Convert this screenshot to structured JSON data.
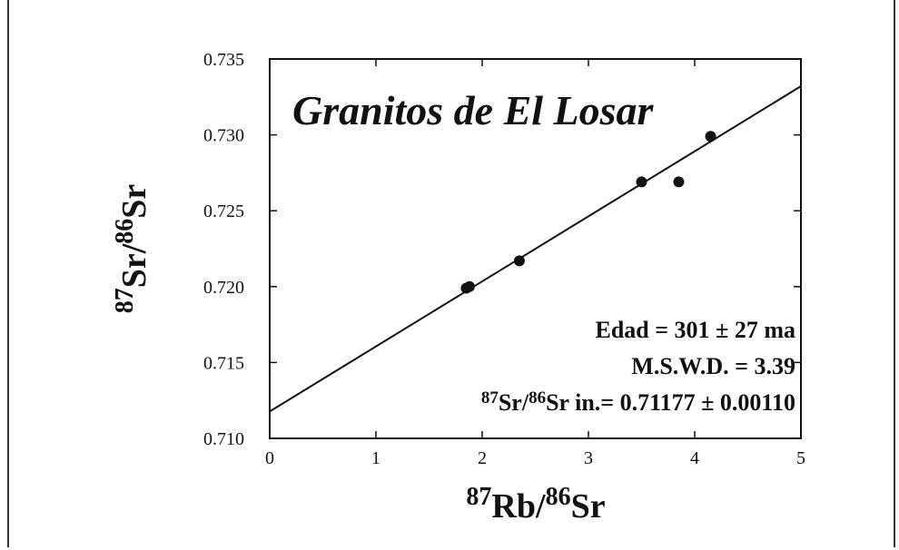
{
  "chart_data": {
    "type": "scatter",
    "title": "Granitos de El Losar",
    "xlabel": {
      "prefix1": "87",
      "el1": "Rb",
      "prefix2": "86",
      "el2": "Sr"
    },
    "ylabel": {
      "prefix1": "87",
      "el1": "Sr",
      "prefix2": "86",
      "el2": "Sr"
    },
    "xlim": [
      0,
      5
    ],
    "ylim": [
      0.71,
      0.735
    ],
    "x_ticks": [
      "0",
      "1",
      "2",
      "3",
      "4",
      "5"
    ],
    "y_ticks": [
      "0.710",
      "0.715",
      "0.720",
      "0.725",
      "0.730",
      "0.735"
    ],
    "points": [
      {
        "x": 1.85,
        "y": 0.7199
      },
      {
        "x": 1.88,
        "y": 0.72
      },
      {
        "x": 2.35,
        "y": 0.7217
      },
      {
        "x": 3.5,
        "y": 0.7269
      },
      {
        "x": 3.85,
        "y": 0.7269
      },
      {
        "x": 4.15,
        "y": 0.7299
      }
    ],
    "fit_line": {
      "intercept": 0.71177,
      "slope": 0.004287
    },
    "annotations": {
      "age": "Edad = 301 ± 27 ma",
      "mswd": "M.S.W.D. = 3.39",
      "initial_prefix1": "87",
      "initial_el1": "Sr/",
      "initial_prefix2": "86",
      "initial_rest": "Sr in.= 0.71177 ± 0.00110"
    },
    "grid": false
  }
}
